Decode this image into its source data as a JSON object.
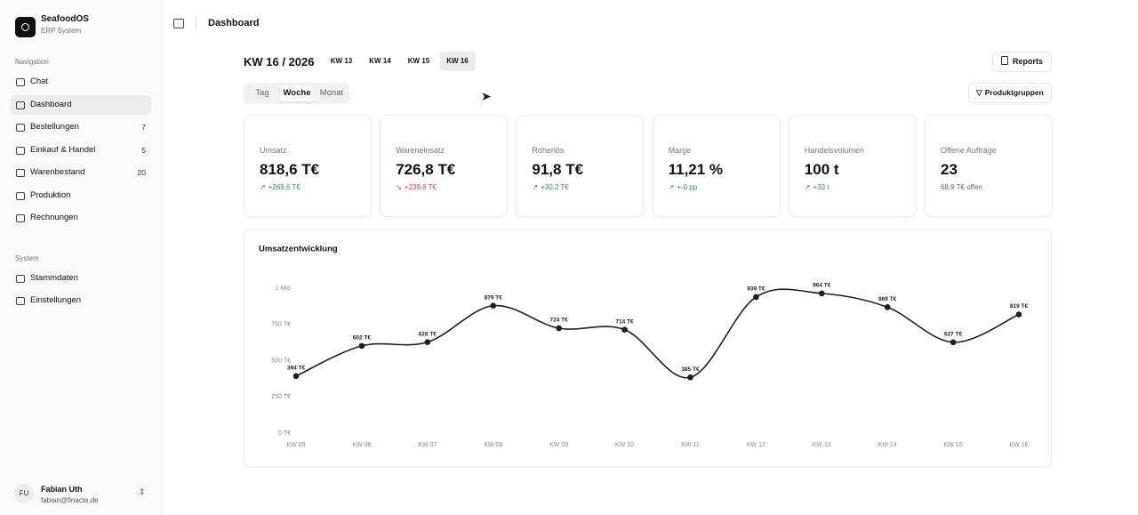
{
  "sidebar": {
    "app_name": "SeafoodOS",
    "app_subtitle": "ERP System",
    "sections": [
      {
        "title": "Navigation",
        "items": [
          {
            "label": "Chat"
          },
          {
            "label": "Dashboard",
            "active": true
          },
          {
            "label": "Bestellungen",
            "badge": 7
          },
          {
            "label": "Einkauf & Handel",
            "badge": 5
          },
          {
            "label": "Warenbestand",
            "badge": 20
          },
          {
            "label": "Produktion"
          },
          {
            "label": "Rechnungen"
          }
        ]
      },
      {
        "title": "System",
        "items": [
          {
            "label": "Stammdaten"
          },
          {
            "label": "Einstellungen"
          }
        ]
      }
    ],
    "user": {
      "initials": "FU",
      "name": "Fabian Uth",
      "email": "fabian@finacte.de"
    }
  },
  "header": {
    "title": "Dashboard"
  },
  "toolbar": {
    "period": "KW 16 / 2026",
    "weeks": [
      "KW 13",
      "KW 14",
      "KW 15",
      "KW 16"
    ],
    "selected_week": 3,
    "reports": "Reports",
    "granularity": [
      "Tag",
      "Woche",
      "Monat"
    ],
    "selected_granularity": 1,
    "filter": "Produktgruppen"
  },
  "kpis": [
    {
      "label": "Umsatz",
      "value": "818,6 T€",
      "delta": "+269,6 T€",
      "trend": "up"
    },
    {
      "label": "Wareneinsatz",
      "value": "726,8 T€",
      "delta": "+239,6 T€",
      "trend": "down"
    },
    {
      "label": "Roherlös",
      "value": "91,8 T€",
      "delta": "+30,2 T€",
      "trend": "up"
    },
    {
      "label": "Marge",
      "value": "11,21 %",
      "delta": "+-0 pp",
      "trend": "up"
    },
    {
      "label": "Handelsvolumen",
      "value": "100 t",
      "delta": "+33 t",
      "trend": "up"
    },
    {
      "label": "Offene Aufträge",
      "value": "23",
      "note": "68,9 T€ offen"
    }
  ],
  "chart_data": {
    "type": "line",
    "title": "Umsatzentwicklung",
    "categories": [
      "KW 05",
      "KW 06",
      "KW 07",
      "KW 08",
      "KW 09",
      "KW 10",
      "KW 11",
      "KW 12",
      "KW 13",
      "KW 14",
      "KW 15",
      "KW 16"
    ],
    "values": [
      394,
      602,
      628,
      879,
      724,
      714,
      385,
      939,
      964,
      869,
      627,
      819
    ],
    "value_labels": [
      "394 T€",
      "602 T€",
      "628 T€",
      "879 T€",
      "724 T€",
      "714 T€",
      "385 T€",
      "939 T€",
      "964 T€",
      "869 T€",
      "627 T€",
      "819 T€"
    ],
    "color": "#1f1f1f",
    "ylim": [
      0,
      1000
    ],
    "yticks": [
      {
        "value": 0,
        "label": "0 T€"
      },
      {
        "value": 250,
        "label": "250 T€"
      },
      {
        "value": 500,
        "label": "500 T€"
      },
      {
        "value": 750,
        "label": "750 T€"
      },
      {
        "value": 1000,
        "label": "1 Mio"
      }
    ],
    "smooth": true
  }
}
